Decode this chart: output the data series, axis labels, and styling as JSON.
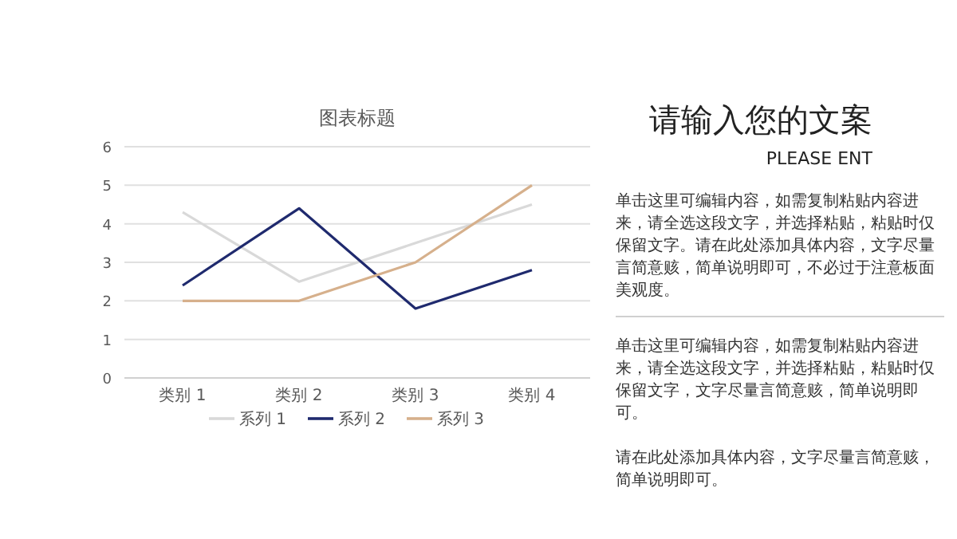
{
  "chart_data": {
    "type": "line",
    "title": "图表标题",
    "categories": [
      "类别 1",
      "类别 2",
      "类别 3",
      "类别 4"
    ],
    "series": [
      {
        "name": "系列 1",
        "color": "#d9d9d9",
        "values": [
          4.3,
          2.5,
          3.5,
          4.5
        ]
      },
      {
        "name": "系列 2",
        "color": "#1f2a6e",
        "values": [
          2.4,
          4.4,
          1.8,
          2.8
        ]
      },
      {
        "name": "系列 3",
        "color": "#d6b08c",
        "values": [
          2.0,
          2.0,
          3.0,
          5.0
        ]
      }
    ],
    "ylim": [
      0,
      6
    ],
    "yticks": [
      0,
      1,
      2,
      3,
      4,
      5,
      6
    ],
    "grid": "y",
    "legend": "bottom",
    "marker": "none",
    "line_style": "solid",
    "annotations": [
      "请输入您的文案",
      "PLEASE ENT",
      "单击这里可编辑内容，如需复制粘贴内容进来，请全选这段文字，并选择粘贴，粘贴时仅保留文字。请在此处添加具体内容，文字尽量言简意赅，简单说明即可，不必过于注意板面美观度。",
      "单击这里可编辑内容，如需复制粘贴内容进来，请全选这段文字，并选择粘贴，粘贴时仅保留文字，文字尽量言简意赅，简单说明即可。",
      "请在此处添加具体内容，文字尽量言简意赅，简单说明即可。"
    ]
  }
}
